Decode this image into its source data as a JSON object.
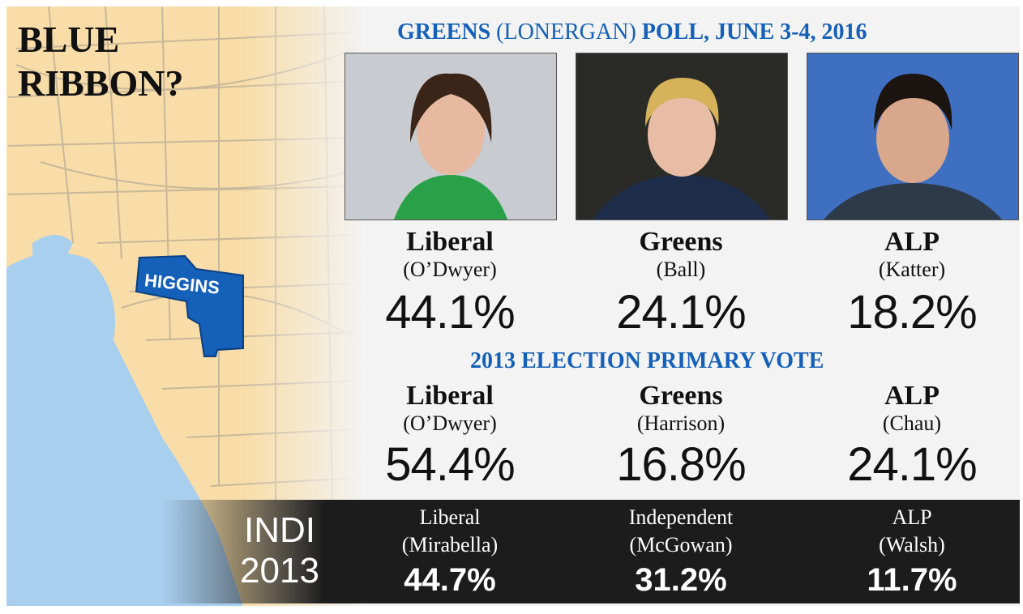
{
  "title": [
    "BLUE",
    "RIBBON?"
  ],
  "map": {
    "label": "HIGGINS"
  },
  "poll": {
    "heading": [
      "GREENS",
      "(LONERGAN)",
      "POLL, JUNE 3-4, 2016"
    ],
    "candidates": [
      {
        "party": "Liberal",
        "name": "(O’Dwyer)",
        "result": "44.1%"
      },
      {
        "party": "Greens",
        "name": "(Ball)",
        "result": "24.1%"
      },
      {
        "party": "ALP",
        "name": "(Katter)",
        "result": "18.2%"
      }
    ]
  },
  "election2013": {
    "heading": "2013 ELECTION PRIMARY VOTE",
    "candidates": [
      {
        "party": "Liberal",
        "name": "(O’Dwyer)",
        "result": "54.4%"
      },
      {
        "party": "Greens",
        "name": "(Harrison)",
        "result": "16.8%"
      },
      {
        "party": "ALP",
        "name": "(Chau)",
        "result": "24.1%"
      }
    ]
  },
  "indi": {
    "heading": [
      "INDI",
      "2013"
    ],
    "candidates": [
      {
        "party": "Liberal",
        "name": "(Mirabella)",
        "result": "44.7%"
      },
      {
        "party": "Independent",
        "name": "(McGowan)",
        "result": "31.2%"
      },
      {
        "party": "ALP",
        "name": "(Walsh)",
        "result": "11.7%"
      }
    ]
  }
}
